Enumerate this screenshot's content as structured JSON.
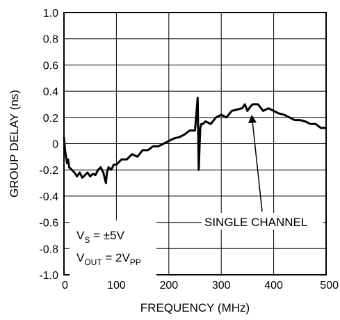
{
  "chart_data": {
    "type": "line",
    "title": "",
    "xlabel": "FREQUENCY (MHz)",
    "ylabel": "GROUP DELAY (ns)",
    "xlim": [
      0,
      500
    ],
    "ylim": [
      -1.0,
      1.0
    ],
    "x_ticks": [
      "0",
      "100",
      "200",
      "300",
      "400",
      "500"
    ],
    "y_ticks": [
      "1.0",
      "0.8",
      "0.6",
      "0.4",
      "0.2",
      "0",
      "-0.2",
      "-0.4",
      "-0.6",
      "-0.8",
      "-1.0"
    ],
    "grid": true,
    "series": [
      {
        "name": "SINGLE CHANNEL",
        "x": [
          0,
          2,
          4,
          6,
          8,
          10,
          15,
          20,
          25,
          30,
          35,
          40,
          45,
          50,
          55,
          60,
          65,
          70,
          75,
          80,
          82,
          85,
          90,
          95,
          100,
          110,
          120,
          130,
          140,
          150,
          160,
          170,
          180,
          190,
          200,
          210,
          220,
          230,
          240,
          250,
          255,
          257,
          260,
          262,
          265,
          270,
          280,
          290,
          300,
          310,
          320,
          330,
          340,
          345,
          350,
          355,
          360,
          370,
          380,
          390,
          400,
          410,
          420,
          430,
          440,
          450,
          460,
          470,
          480,
          490,
          500
        ],
        "y": [
          0.05,
          -0.05,
          -0.1,
          -0.15,
          -0.12,
          -0.18,
          -0.2,
          -0.22,
          -0.25,
          -0.22,
          -0.26,
          -0.24,
          -0.22,
          -0.25,
          -0.23,
          -0.24,
          -0.2,
          -0.18,
          -0.22,
          -0.3,
          -0.22,
          -0.18,
          -0.2,
          -0.16,
          -0.16,
          -0.12,
          -0.12,
          -0.08,
          -0.1,
          -0.05,
          -0.05,
          -0.02,
          -0.02,
          0.0,
          0.02,
          0.04,
          0.05,
          0.07,
          0.1,
          0.1,
          0.35,
          -0.2,
          0.12,
          0.15,
          0.15,
          0.17,
          0.15,
          0.2,
          0.22,
          0.2,
          0.25,
          0.26,
          0.27,
          0.3,
          0.25,
          0.28,
          0.3,
          0.3,
          0.25,
          0.27,
          0.25,
          0.23,
          0.22,
          0.2,
          0.18,
          0.18,
          0.17,
          0.15,
          0.15,
          0.12,
          0.12
        ]
      }
    ],
    "annotations": {
      "series_label": "SINGLE CHANNEL",
      "vs": {
        "main": "V",
        "sub": "S",
        "rest": " = ±5V"
      },
      "vout": {
        "main": "V",
        "sub": "OUT",
        "rest": " = 2V",
        "sub2": "PP"
      }
    }
  }
}
